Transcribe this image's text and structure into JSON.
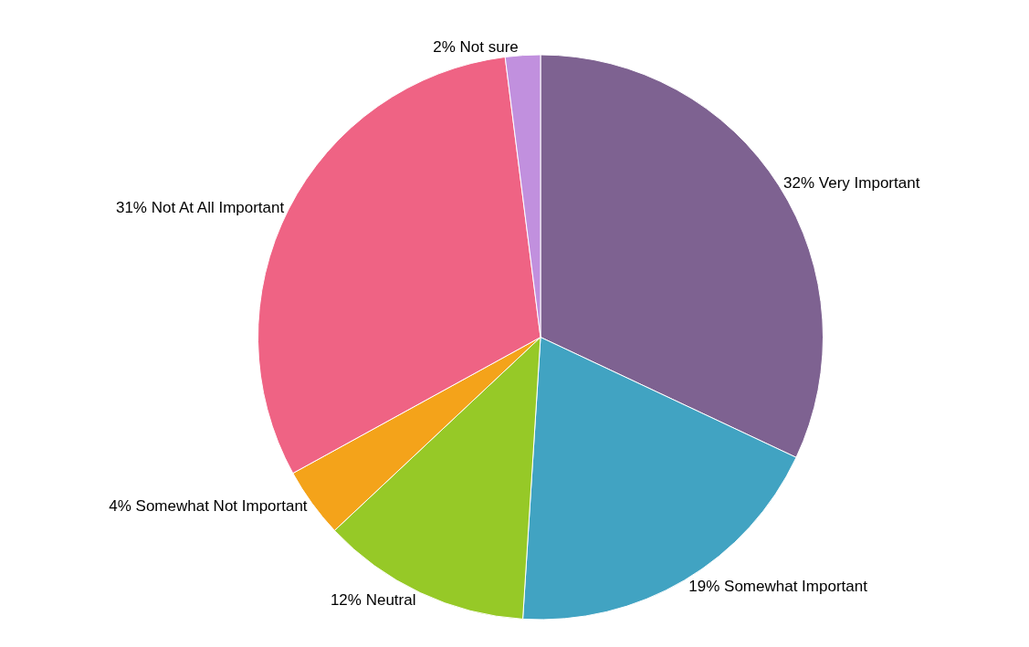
{
  "chart_data": {
    "type": "pie",
    "categories": [
      "Very Important",
      "Somewhat Important",
      "Neutral",
      "Somewhat Not Important",
      "Not At All Important",
      "Not sure"
    ],
    "values": [
      32,
      19,
      12,
      4,
      31,
      2
    ],
    "value_labels": [
      "32%",
      "19%",
      "12%",
      "4%",
      "31%",
      "2%"
    ],
    "colors": [
      "#7e6291",
      "#41a3c2",
      "#96c927",
      "#f4a31a",
      "#ef6384",
      "#c190de"
    ],
    "legend": false
  }
}
